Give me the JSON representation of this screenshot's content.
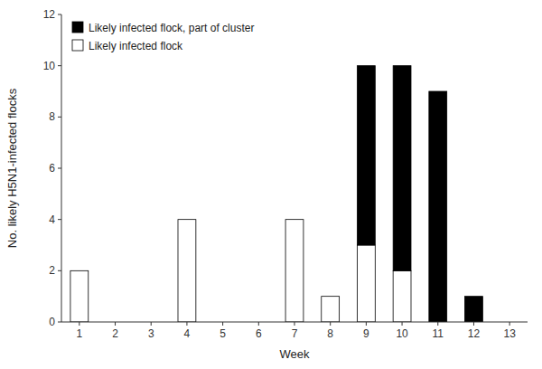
{
  "chart_data": {
    "type": "bar",
    "stacked": true,
    "x": [
      1,
      2,
      3,
      4,
      5,
      6,
      7,
      8,
      9,
      10,
      11,
      12,
      13
    ],
    "series": [
      {
        "name": "Likely infected flock",
        "color": "#ffffff",
        "values": [
          2,
          0,
          0,
          4,
          0,
          0,
          4,
          1,
          3,
          2,
          0,
          0,
          0
        ]
      },
      {
        "name": "Likely infected flock, part of cluster",
        "color": "#000000",
        "values": [
          0,
          0,
          0,
          0,
          0,
          0,
          0,
          0,
          7,
          8,
          9,
          1,
          0
        ]
      }
    ],
    "x_label": "Week",
    "y_label": "No. likely H5N1-infected flocks",
    "xlim": [
      0.5,
      13.5
    ],
    "xticks": [
      1,
      2,
      3,
      4,
      5,
      6,
      7,
      8,
      9,
      10,
      11,
      12,
      13
    ],
    "ylim": [
      0,
      12
    ],
    "yticks": [
      0,
      2,
      4,
      6,
      8,
      10,
      12
    ],
    "grid": false,
    "legend": "upper left"
  }
}
